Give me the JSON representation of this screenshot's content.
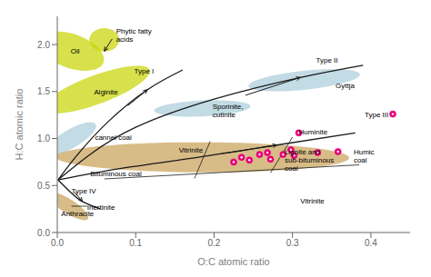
{
  "chart_data": {
    "type": "scatter",
    "xlabel": "O:C atomic ratio",
    "ylabel": "H:C atomic ratio",
    "xlim": [
      0.0,
      0.45
    ],
    "ylim": [
      0.0,
      2.3
    ],
    "xticks": [
      {
        "value": 0.0,
        "label": "0.0"
      },
      0.1,
      0.2,
      0.3,
      0.4
    ],
    "yticks": [
      {
        "value": 0.0,
        "label": "0.0"
      },
      0.5,
      {
        "value": 1.0,
        "label": "1.0"
      },
      1.5,
      {
        "value": 2.0,
        "label": "2.0"
      }
    ],
    "grid": false,
    "x": [
      0.225,
      0.235,
      0.245,
      0.258,
      0.268,
      0.272,
      0.288,
      0.298,
      0.302,
      0.308,
      0.332,
      0.358,
      0.428
    ],
    "values": [
      0.75,
      0.8,
      0.77,
      0.83,
      0.85,
      0.78,
      0.83,
      0.88,
      0.82,
      1.06,
      0.85,
      0.86,
      1.26
    ],
    "color": "#e8007a",
    "line_color": "#1a1a1a",
    "lines": [
      {
        "x": [
          0.001,
          0.025,
          0.065,
          0.115,
          0.16
        ],
        "values": [
          0.56,
          0.82,
          1.18,
          1.52,
          1.73
        ]
      },
      {
        "x": [
          0.001,
          0.04,
          0.1,
          0.2,
          0.31,
          0.39
        ],
        "values": [
          0.56,
          0.82,
          1.12,
          1.42,
          1.65,
          1.78
        ]
      },
      {
        "x": [
          0.001,
          0.08,
          0.18,
          0.28,
          0.38
        ],
        "values": [
          0.56,
          0.68,
          0.8,
          0.93,
          1.06
        ]
      },
      {
        "x": [
          0.001,
          0.018,
          0.032,
          0.055
        ],
        "values": [
          0.56,
          0.42,
          0.33,
          0.25
        ]
      }
    ],
    "regions": [
      {
        "cx": 0.018,
        "cy": 1.93,
        "width": 0.075,
        "height": 0.42,
        "angle": 5,
        "color": "#c8d400"
      },
      {
        "cx": 0.06,
        "cy": 2.05,
        "width": 0.038,
        "height": 0.25,
        "angle": 0,
        "color": "#c8d400"
      },
      {
        "cx": 0.05,
        "cy": 1.52,
        "width": 0.085,
        "height": 0.52,
        "angle": -12,
        "color": "#c8d400"
      },
      {
        "cx": 0.315,
        "cy": 1.62,
        "width": 0.115,
        "height": 0.25,
        "angle": -22,
        "color": "#a8ccd8"
      },
      {
        "cx": 0.185,
        "cy": 1.32,
        "width": 0.115,
        "height": 0.18,
        "angle": -18,
        "color": "#a8ccd8"
      },
      {
        "cx": 0.018,
        "cy": 1.0,
        "width": 0.04,
        "height": 0.35,
        "angle": -8,
        "color": "#a8ccd8"
      },
      {
        "cx": 0.185,
        "cy": 0.8,
        "width": 0.375,
        "height": 0.32,
        "angle": -6,
        "color": "#c8a055"
      },
      {
        "cx": 0.014,
        "cy": 0.28,
        "width": 0.03,
        "height": 0.3,
        "angle": 8,
        "color": "#c8a055"
      }
    ],
    "segments": [
      {
        "x": [
          0.06,
          0.385
        ],
        "values": [
          0.57,
          0.72
        ]
      },
      {
        "x": [
          0.175,
          0.195
        ],
        "values": [
          0.575,
          0.97
        ]
      },
      {
        "x": [
          0.272,
          0.3
        ],
        "values": [
          0.635,
          1.015
        ]
      },
      {
        "x": [
          0.038,
          0.018
        ],
        "values": [
          0.28,
          0.28
        ]
      }
    ],
    "arrows": [
      {
        "x": [
          0.09,
          0.115
        ],
        "values": [
          1.35,
          1.52
        ]
      },
      {
        "x": [
          0.24,
          0.31
        ],
        "values": [
          1.46,
          1.65
        ]
      },
      {
        "x": [
          0.21,
          0.28
        ],
        "values": [
          0.84,
          0.93
        ]
      },
      {
        "x": [
          0.022,
          0.032
        ],
        "values": [
          0.43,
          0.33
        ]
      },
      {
        "x": [
          0.07,
          0.06
        ],
        "values": [
          2.06,
          1.93
        ]
      }
    ],
    "annotations": [
      {
        "text": "Oil",
        "x": 0.017,
        "y": 1.93
      },
      {
        "text": "Phytic fatty\nacids",
        "x": 0.075,
        "y": 2.1
      },
      {
        "text": "Alginite",
        "x": 0.047,
        "y": 1.5
      },
      {
        "text": "cannel coal",
        "x": 0.048,
        "y": 1.01
      },
      {
        "text": "Bituminous coal",
        "x": 0.042,
        "y": 0.63
      },
      {
        "text": "Vitrinite",
        "x": 0.155,
        "y": 0.88
      },
      {
        "text": "Huminite",
        "x": 0.308,
        "y": 1.07
      },
      {
        "text": "Lignite and\nsub-bituminous\ncoal",
        "x": 0.29,
        "y": 0.77
      },
      {
        "text": "Humic\ncoal",
        "x": 0.378,
        "y": 0.82
      },
      {
        "text": "Vitrinite",
        "x": 0.31,
        "y": 0.34
      },
      {
        "text": "Anthracite",
        "x": 0.005,
        "y": 0.2
      },
      {
        "text": "Inertinite",
        "x": 0.038,
        "y": 0.27
      },
      {
        "text": "Type I",
        "x": 0.098,
        "y": 1.72
      },
      {
        "text": "Type II",
        "x": 0.33,
        "y": 1.84
      },
      {
        "text": "Type III",
        "x": 0.392,
        "y": 1.26
      },
      {
        "text": "Type IV",
        "x": 0.018,
        "y": 0.44
      },
      {
        "text": "Sporinite,\ncutinite",
        "x": 0.198,
        "y": 1.3
      },
      {
        "text": "Gyttja",
        "x": 0.355,
        "y": 1.57
      }
    ]
  }
}
